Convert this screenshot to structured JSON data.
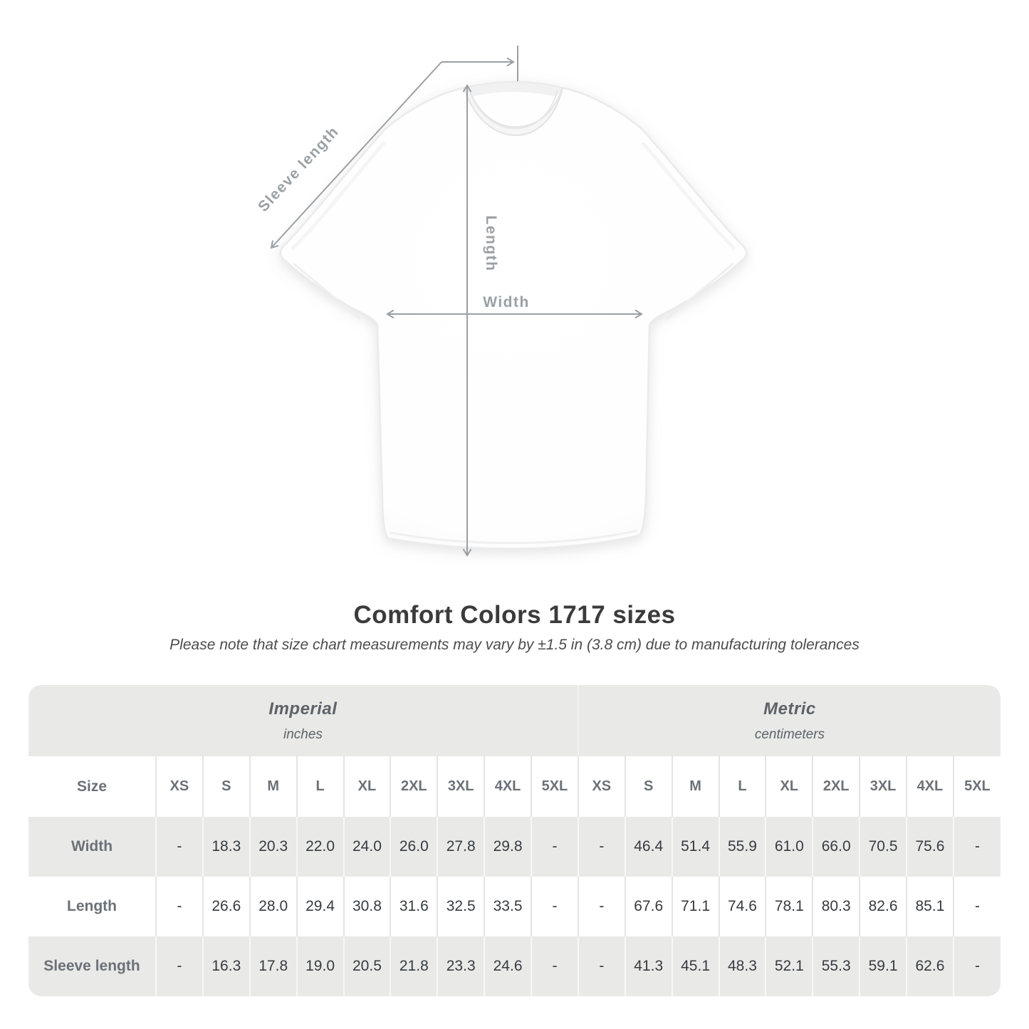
{
  "diagram": {
    "labels": {
      "sleeve_length": "Sleeve length",
      "length": "Length",
      "width": "Width"
    },
    "annotation_color": "#9aa0a5"
  },
  "heading": {
    "title": "Comfort Colors 1717 sizes",
    "note": "Please note that size chart measurements may vary by ±1.5 in (3.8 cm) due to manufacturing tolerances"
  },
  "chart_data": {
    "type": "table",
    "title": "Comfort Colors 1717 sizes",
    "note": "Please note that size chart measurements may vary by ±1.5 in (3.8 cm) due to manufacturing tolerances",
    "row_header": "Size",
    "sizes": [
      "XS",
      "S",
      "M",
      "L",
      "XL",
      "2XL",
      "3XL",
      "4XL",
      "5XL"
    ],
    "column_groups": [
      {
        "label": "Imperial",
        "unit": "inches"
      },
      {
        "label": "Metric",
        "unit": "centimeters"
      }
    ],
    "rows": [
      {
        "label": "Width",
        "imperial": [
          "-",
          "18.3",
          "20.3",
          "22.0",
          "24.0",
          "26.0",
          "27.8",
          "29.8",
          "-"
        ],
        "metric": [
          "-",
          "46.4",
          "51.4",
          "55.9",
          "61.0",
          "66.0",
          "70.5",
          "75.6",
          "-"
        ]
      },
      {
        "label": "Length",
        "imperial": [
          "-",
          "26.6",
          "28.0",
          "29.4",
          "30.8",
          "31.6",
          "32.5",
          "33.5",
          "-"
        ],
        "metric": [
          "-",
          "67.6",
          "71.1",
          "74.6",
          "78.1",
          "80.3",
          "82.6",
          "85.1",
          "-"
        ]
      },
      {
        "label": "Sleeve length",
        "imperial": [
          "-",
          "16.3",
          "17.8",
          "19.0",
          "20.5",
          "21.8",
          "23.3",
          "24.6",
          "-"
        ],
        "metric": [
          "-",
          "41.3",
          "45.1",
          "48.3",
          "52.1",
          "55.3",
          "59.1",
          "62.6",
          "-"
        ]
      }
    ]
  },
  "colors": {
    "band_bg": "#e9e9e8",
    "row_bg": "#ffffff",
    "divider_on_white": "#e4e4e3",
    "divider_on_gray": "#f7f7f6",
    "table_values_text": "#373b3f",
    "muted_label_text": "#6b7177",
    "annotation_gray": "#9aa0a5",
    "title_text": "#3b3b3b"
  }
}
